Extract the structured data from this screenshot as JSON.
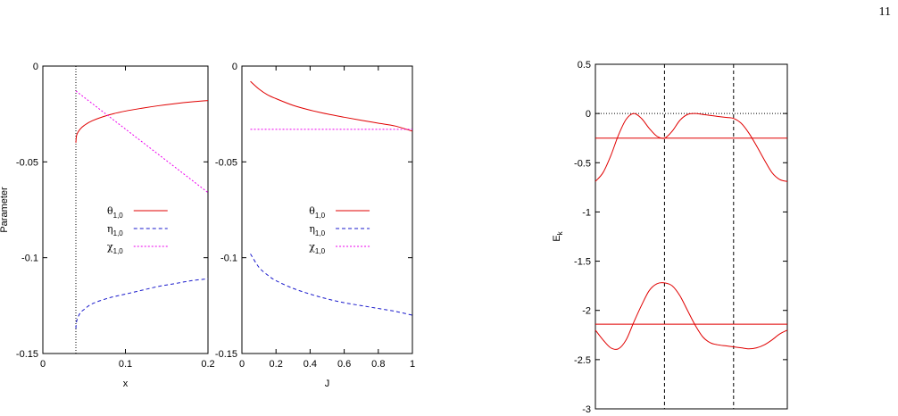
{
  "page_number": "11",
  "chart_data": [
    {
      "type": "line",
      "xlabel": "x",
      "ylabel": "Parameter",
      "xlim": [
        0,
        0.2
      ],
      "ylim": [
        -0.15,
        0
      ],
      "xticks": [
        "0",
        "0.1",
        "0.2"
      ],
      "yticks": [
        "0",
        "-0.05",
        "-0.1",
        "-0.15"
      ],
      "legend_position": "center",
      "vline_x": 0.04,
      "series": [
        {
          "name": "θ1,0",
          "color": "#e00000",
          "dash": "solid",
          "x": [
            0.04,
            0.041,
            0.045,
            0.05,
            0.06,
            0.08,
            0.1,
            0.12,
            0.14,
            0.16,
            0.18,
            0.2
          ],
          "y": [
            -0.04,
            -0.036,
            -0.033,
            -0.031,
            -0.0285,
            -0.0255,
            -0.0235,
            -0.022,
            -0.0207,
            -0.0196,
            -0.0187,
            -0.018
          ]
        },
        {
          "name": "η1,0",
          "color": "#1a1acc",
          "dash": "dashed",
          "x": [
            0.04,
            0.041,
            0.045,
            0.05,
            0.06,
            0.08,
            0.1,
            0.12,
            0.14,
            0.16,
            0.18,
            0.2
          ],
          "y": [
            -0.137,
            -0.133,
            -0.129,
            -0.127,
            -0.124,
            -0.121,
            -0.119,
            -0.117,
            -0.115,
            -0.1135,
            -0.112,
            -0.111
          ]
        },
        {
          "name": "χ1,0",
          "color": "#ee00ee",
          "dash": "dotted",
          "x": [
            0.04,
            0.2
          ],
          "y": [
            -0.013,
            -0.066
          ]
        }
      ]
    },
    {
      "type": "line",
      "xlabel": "J",
      "ylabel": "",
      "xlim": [
        0,
        1
      ],
      "ylim": [
        -0.15,
        0
      ],
      "xticks": [
        "0",
        "0.2",
        "0.4",
        "0.6",
        "0.8",
        "1"
      ],
      "yticks": [
        "0",
        "-0.05",
        "-0.1",
        "-0.15"
      ],
      "legend_position": "center",
      "series": [
        {
          "name": "θ1,0",
          "color": "#e00000",
          "dash": "solid",
          "x": [
            0.05,
            0.1,
            0.15,
            0.2,
            0.3,
            0.4,
            0.5,
            0.6,
            0.7,
            0.8,
            0.9,
            1.0
          ],
          "y": [
            -0.008,
            -0.012,
            -0.015,
            -0.017,
            -0.0205,
            -0.023,
            -0.025,
            -0.0267,
            -0.0283,
            -0.0298,
            -0.0313,
            -0.034
          ]
        },
        {
          "name": "η1,0",
          "color": "#1a1acc",
          "dash": "dashed",
          "x": [
            0.05,
            0.1,
            0.15,
            0.2,
            0.3,
            0.4,
            0.5,
            0.6,
            0.7,
            0.8,
            0.9,
            1.0
          ],
          "y": [
            -0.098,
            -0.105,
            -0.109,
            -0.112,
            -0.116,
            -0.119,
            -0.1215,
            -0.1235,
            -0.125,
            -0.1265,
            -0.128,
            -0.13
          ]
        },
        {
          "name": "χ1,0",
          "color": "#ee00ee",
          "dash": "dotted",
          "x": [
            0.05,
            1.0
          ],
          "y": [
            -0.033,
            -0.033
          ]
        }
      ]
    },
    {
      "type": "line",
      "xlabel": "",
      "ylabel": "Ek",
      "xlim": [
        0,
        1
      ],
      "ylim": [
        -3,
        0.5
      ],
      "yticks": [
        "0.5",
        "0",
        "-0.5",
        "-1",
        "-1.5",
        "-2",
        "-2.5",
        "-3"
      ],
      "hline_dotted_y": 0,
      "vlines_dashed_x": [
        0.36,
        0.72
      ],
      "series": [
        {
          "name": "",
          "color": "#e00000",
          "dash": "solid",
          "x": [
            0,
            0.04,
            0.08,
            0.12,
            0.16,
            0.2,
            0.24,
            0.28,
            0.32,
            0.36,
            0.4,
            0.44,
            0.48,
            0.52,
            0.56,
            0.6,
            0.64,
            0.68,
            0.72,
            0.76,
            0.8,
            0.84,
            0.88,
            0.92,
            0.96,
            1.0
          ],
          "y": [
            -0.69,
            -0.6,
            -0.43,
            -0.22,
            -0.06,
            0.0,
            -0.05,
            -0.15,
            -0.23,
            -0.25,
            -0.18,
            -0.07,
            -0.01,
            0.0,
            -0.01,
            -0.02,
            -0.03,
            -0.04,
            -0.05,
            -0.1,
            -0.2,
            -0.33,
            -0.47,
            -0.6,
            -0.67,
            -0.69
          ]
        },
        {
          "name": "",
          "color": "#e00000",
          "dash": "solid",
          "x": [
            0,
            1
          ],
          "y": [
            -0.25,
            -0.25
          ]
        },
        {
          "name": "",
          "color": "#e00000",
          "dash": "solid",
          "x": [
            0,
            0.04,
            0.08,
            0.12,
            0.16,
            0.2,
            0.24,
            0.28,
            0.32,
            0.36,
            0.4,
            0.44,
            0.48,
            0.52,
            0.56,
            0.6,
            0.64,
            0.68,
            0.72,
            0.76,
            0.8,
            0.84,
            0.88,
            0.92,
            0.96,
            1.0
          ],
          "y": [
            -2.2,
            -2.3,
            -2.38,
            -2.39,
            -2.3,
            -2.12,
            -1.95,
            -1.8,
            -1.73,
            -1.72,
            -1.75,
            -1.85,
            -2.0,
            -2.15,
            -2.27,
            -2.33,
            -2.35,
            -2.36,
            -2.37,
            -2.38,
            -2.39,
            -2.38,
            -2.35,
            -2.3,
            -2.24,
            -2.2
          ]
        },
        {
          "name": "",
          "color": "#e00000",
          "dash": "solid",
          "x": [
            0,
            1
          ],
          "y": [
            -2.14,
            -2.14
          ]
        }
      ]
    }
  ]
}
